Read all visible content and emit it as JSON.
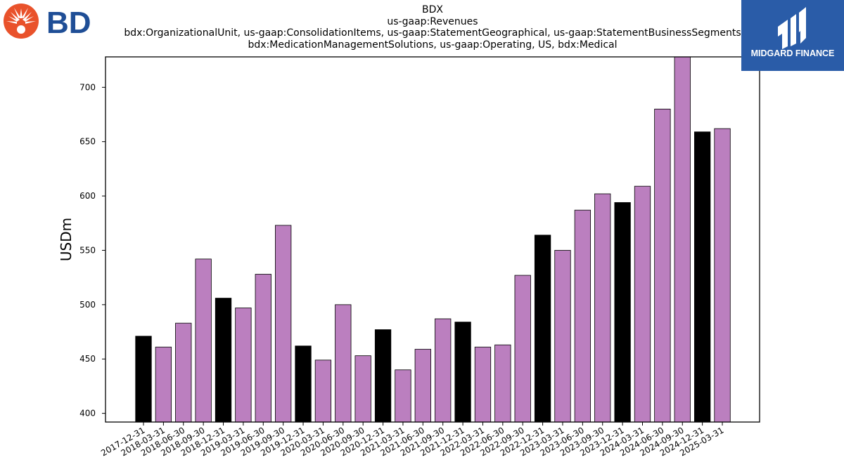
{
  "header": {
    "left_logo_text": "BD",
    "right_logo_text": "MIDGARD FINANCE"
  },
  "chart_data": {
    "type": "bar",
    "title": "BDX",
    "subtitle_lines": [
      "us-gaap:Revenues",
      "bdx:OrganizationalUnit, us-gaap:ConsolidationItems, us-gaap:StatementGeographical, us-gaap:StatementBusinessSegments",
      "bdx:MedicationManagementSolutions, us-gaap:Operating, US, bdx:Medical"
    ],
    "xlabel": "",
    "ylabel": "USDm",
    "ylim": [
      392,
      728
    ],
    "yticks": [
      400,
      450,
      500,
      550,
      600,
      650,
      700
    ],
    "grid": false,
    "categories": [
      "2017-12-31",
      "2018-03-31",
      "2018-06-30",
      "2018-09-30",
      "2018-12-31",
      "2019-03-31",
      "2019-06-30",
      "2019-09-30",
      "2019-12-31",
      "2020-03-31",
      "2020-06-30",
      "2020-09-30",
      "2020-12-31",
      "2021-03-31",
      "2021-06-30",
      "2021-09-30",
      "2021-12-31",
      "2022-03-31",
      "2022-06-30",
      "2022-09-30",
      "2022-12-31",
      "2023-03-31",
      "2023-06-30",
      "2023-09-30",
      "2023-12-31",
      "2024-03-31",
      "2024-06-30",
      "2024-09-30",
      "2024-12-31",
      "2025-03-31"
    ],
    "values": [
      471,
      461,
      483,
      542,
      506,
      497,
      528,
      573,
      462,
      449,
      500,
      453,
      477,
      440,
      459,
      487,
      484,
      461,
      463,
      527,
      564,
      550,
      587,
      602,
      594,
      609,
      680,
      729,
      659,
      662
    ],
    "bar_colors": {
      "quarter_end_dec": "#000000",
      "other_quarter": "#bb7fbf"
    }
  }
}
